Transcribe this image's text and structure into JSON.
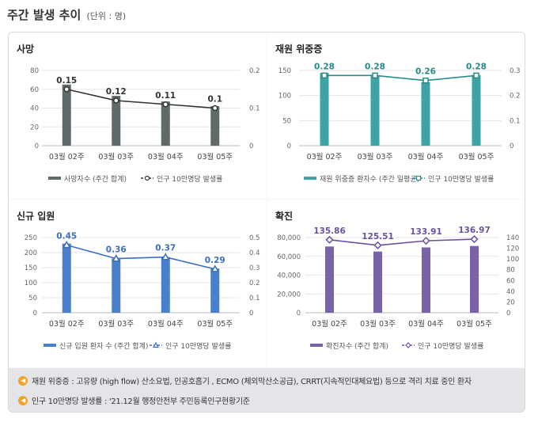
{
  "page": {
    "title": "주간 발생 추이",
    "unit": "(단위 : 명)"
  },
  "notes": [
    {
      "icon": "speaker-icon",
      "text": "재원 위중증 : 고유량 (high flow) 산소요법, 인공호흡기 , ECMO (체외막산소공급), CRRT(지속적인대체요법) 등으로 격리 치료 중인 환자"
    },
    {
      "icon": "speaker-icon",
      "text": "인구 10만명당 발생률 : '21.12월 행정안전부 주민등록인구현황기준"
    }
  ],
  "chart_data": [
    {
      "id": "deaths",
      "type": "bar",
      "title": "사망",
      "categories": [
        "03월 02주",
        "03월 03주",
        "03월 04주",
        "03월 05주"
      ],
      "series": [
        {
          "name": "사망자수 (주간 합계)",
          "type": "bar",
          "axis": "left",
          "values": [
            65,
            53,
            47,
            42
          ],
          "color": "#5f6b6b"
        },
        {
          "name": "인구 10만명당 발생률",
          "type": "line",
          "axis": "right",
          "values": [
            0.15,
            0.12,
            0.11,
            0.1
          ],
          "labels": [
            "0.15",
            "0.12",
            "0.11",
            "0.1"
          ],
          "color": "#333333",
          "marker": "circle"
        }
      ],
      "y_left": {
        "min": 0,
        "max": 80,
        "ticks": [
          "0",
          "20",
          "40",
          "60",
          "80"
        ]
      },
      "y_right": {
        "min": 0,
        "max": 0.2,
        "ticks": [
          "0",
          "0.1",
          "0.2"
        ]
      }
    },
    {
      "id": "severe",
      "type": "bar",
      "title": "재원 위중증",
      "categories": [
        "03월 02주",
        "03월 03주",
        "03월 04주",
        "03월 05주"
      ],
      "series": [
        {
          "name": "재원 위중증 환자수 (주간 일평균)",
          "type": "bar",
          "axis": "left",
          "values": [
            145,
            140,
            127,
            141
          ],
          "color": "#3ea3a3"
        },
        {
          "name": "인구 10만명당 발생률",
          "type": "line",
          "axis": "right",
          "values": [
            0.28,
            0.28,
            0.26,
            0.28
          ],
          "labels": [
            "0.28",
            "0.28",
            "0.26",
            "0.28"
          ],
          "color": "#2a8a8a",
          "marker": "square"
        }
      ],
      "y_left": {
        "min": 0,
        "max": 150,
        "ticks": [
          "0",
          "50",
          "100",
          "150"
        ]
      },
      "y_right": {
        "min": 0,
        "max": 0.3,
        "ticks": [
          "0",
          "0.1",
          "0.2",
          "0.3"
        ]
      }
    },
    {
      "id": "admissions",
      "type": "bar",
      "title": "신규 입원",
      "categories": [
        "03월 02주",
        "03월 03주",
        "03월 04주",
        "03월 05주"
      ],
      "series": [
        {
          "name": "신규 입원 환자 수 (주간 합계)",
          "type": "bar",
          "axis": "left",
          "values": [
            230,
            180,
            185,
            147
          ],
          "color": "#4a7fc9"
        },
        {
          "name": "인구 10만명당 발생률",
          "type": "line",
          "axis": "right",
          "values": [
            0.45,
            0.36,
            0.37,
            0.29
          ],
          "labels": [
            "0.45",
            "0.36",
            "0.37",
            "0.29"
          ],
          "color": "#3a6fc0",
          "marker": "triangle"
        }
      ],
      "y_left": {
        "min": 0,
        "max": 250,
        "ticks": [
          "0",
          "50",
          "100",
          "150",
          "200",
          "250"
        ]
      },
      "y_right": {
        "min": 0,
        "max": 0.5,
        "ticks": [
          "0",
          "0.1",
          "0.2",
          "0.3",
          "0.4",
          "0.5"
        ]
      }
    },
    {
      "id": "confirmed",
      "type": "bar",
      "title": "확진",
      "categories": [
        "03월 02주",
        "03월 03주",
        "03월 04주",
        "03월 05주"
      ],
      "series": [
        {
          "name": "확진자수 (주간 합계)",
          "type": "bar",
          "axis": "left",
          "values": [
            70500,
            65100,
            69500,
            71000
          ],
          "color": "#7a62a8"
        },
        {
          "name": "인구 10만명당 발생률",
          "type": "line",
          "axis": "right",
          "values": [
            135.86,
            125.51,
            133.91,
            136.97
          ],
          "labels": [
            "135.86",
            "125.51",
            "133.91",
            "136.97"
          ],
          "color": "#6b52a0",
          "marker": "diamond"
        }
      ],
      "y_left": {
        "min": 0,
        "max": 80000,
        "ticks": [
          "0",
          "20,000",
          "40,000",
          "60,000",
          "80,000"
        ]
      },
      "y_right": {
        "min": 0,
        "max": 140,
        "ticks": [
          "0",
          "20",
          "40",
          "60",
          "80",
          "100",
          "120",
          "140"
        ]
      }
    }
  ]
}
